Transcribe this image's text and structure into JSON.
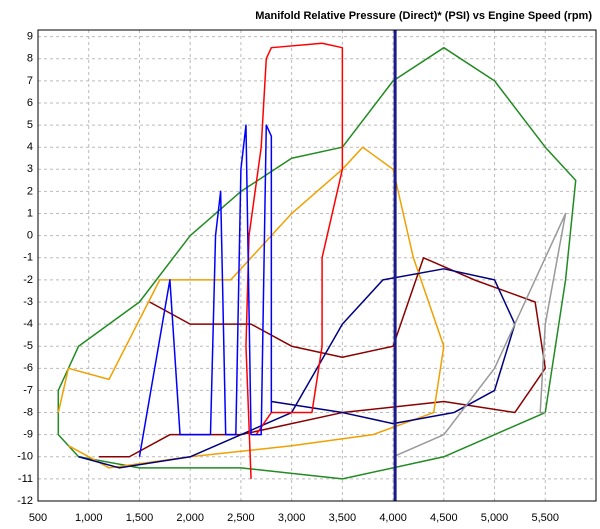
{
  "chart_data": {
    "type": "line",
    "title": "Manifold Relative Pressure (Direct)* (PSI) vs Engine Speed (rpm)",
    "xlim": [
      500,
      6000
    ],
    "ylim": [
      -12,
      9.3
    ],
    "xticks": [
      500,
      {
        "value": 1000,
        "label": "1,000"
      },
      {
        "value": 1500,
        "label": "1,500"
      },
      {
        "value": 2000,
        "label": "2,000"
      },
      {
        "value": 2500,
        "label": "2,500"
      },
      {
        "value": 3000,
        "label": "3,000"
      },
      {
        "value": 3500,
        "label": "3,500"
      },
      {
        "value": 4000,
        "label": "4,000"
      },
      {
        "value": 4500,
        "label": "4,500"
      },
      {
        "value": 5000,
        "label": "5,000"
      },
      {
        "value": 5500,
        "label": "5,500"
      }
    ],
    "yticks": [
      -12,
      -11,
      -10,
      -9,
      -8,
      -7,
      -6,
      -5,
      -4,
      -3,
      -2,
      -1,
      0,
      1,
      2,
      3,
      4,
      5,
      6,
      7,
      8,
      9
    ],
    "grid": true,
    "cursor_x": 4020,
    "cursor_color": "#1a1a8c",
    "series": [
      {
        "color": "#228b22",
        "x": [
          700,
          900,
          1500,
          2000,
          2500,
          3000,
          3500,
          4000,
          4500,
          5000,
          5500,
          5800,
          5700,
          5500,
          5000,
          4500,
          3500,
          2500,
          1500,
          900,
          700,
          700
        ],
        "y": [
          -7,
          -5,
          -3,
          0,
          2,
          3.5,
          4,
          7,
          8.5,
          7,
          4,
          2.5,
          -2,
          -8,
          -9,
          -10,
          -11,
          -10.5,
          -10.5,
          -10,
          -9,
          -7
        ]
      },
      {
        "color": "#8b0000",
        "x": [
          1600,
          2000,
          2600,
          3000,
          3500,
          4000,
          4300,
          4800,
          5400,
          5500,
          5200,
          4500,
          3500,
          2500,
          1800,
          1400,
          1100
        ],
        "y": [
          -3,
          -4,
          -4,
          -5,
          -5.5,
          -5,
          -1,
          -2,
          -3,
          -6,
          -8,
          -7.5,
          -8,
          -9,
          -9,
          -10,
          -10
        ]
      },
      {
        "color": "#f0a000",
        "x": [
          700,
          800,
          1200,
          1700,
          2400,
          3000,
          3500,
          3700,
          4000,
          4200,
          4500,
          4400,
          3800,
          3000,
          2000,
          1200,
          800
        ],
        "y": [
          -8,
          -6,
          -6.5,
          -2,
          -2,
          1,
          3,
          4,
          3,
          -1,
          -5,
          -8,
          -9,
          -9.5,
          -10,
          -10.5,
          -9.5
        ]
      },
      {
        "color": "#000080",
        "x": [
          900,
          1300,
          2000,
          3000,
          3500,
          3900,
          4500,
          5000,
          5200,
          5000,
          4600,
          4000,
          3500,
          2800
        ],
        "y": [
          -10,
          -10.5,
          -10,
          -8,
          -4,
          -2,
          -1.5,
          -2,
          -4,
          -7,
          -8,
          -8.5,
          -8,
          -7.5
        ]
      },
      {
        "color": "#ff0000",
        "x": [
          2600,
          2550,
          2580,
          2700,
          2750,
          2800,
          3300,
          3500,
          3500,
          3300,
          3300,
          3200,
          2800,
          2650
        ],
        "y": [
          -11,
          -5,
          0,
          4,
          8,
          8.5,
          8.7,
          8.5,
          3,
          -1,
          -5,
          -8,
          -8,
          -9
        ]
      },
      {
        "color": "#0000ff",
        "x": [
          1500,
          1800,
          1900,
          2200,
          2250,
          2300,
          2350,
          2450,
          2500,
          2550,
          2600,
          2700,
          2750,
          2800,
          2800
        ],
        "y": [
          -10,
          -2,
          -9,
          -9,
          0,
          2,
          -9,
          -9,
          3,
          5,
          -9,
          -9,
          5,
          4.5,
          -8
        ]
      },
      {
        "color": "#999999",
        "x": [
          4000,
          4500,
          5000,
          5400,
          5700,
          5500,
          5450,
          5500
        ],
        "y": [
          -10,
          -9,
          -6,
          -2,
          1,
          -4,
          -8,
          -8
        ]
      }
    ]
  }
}
